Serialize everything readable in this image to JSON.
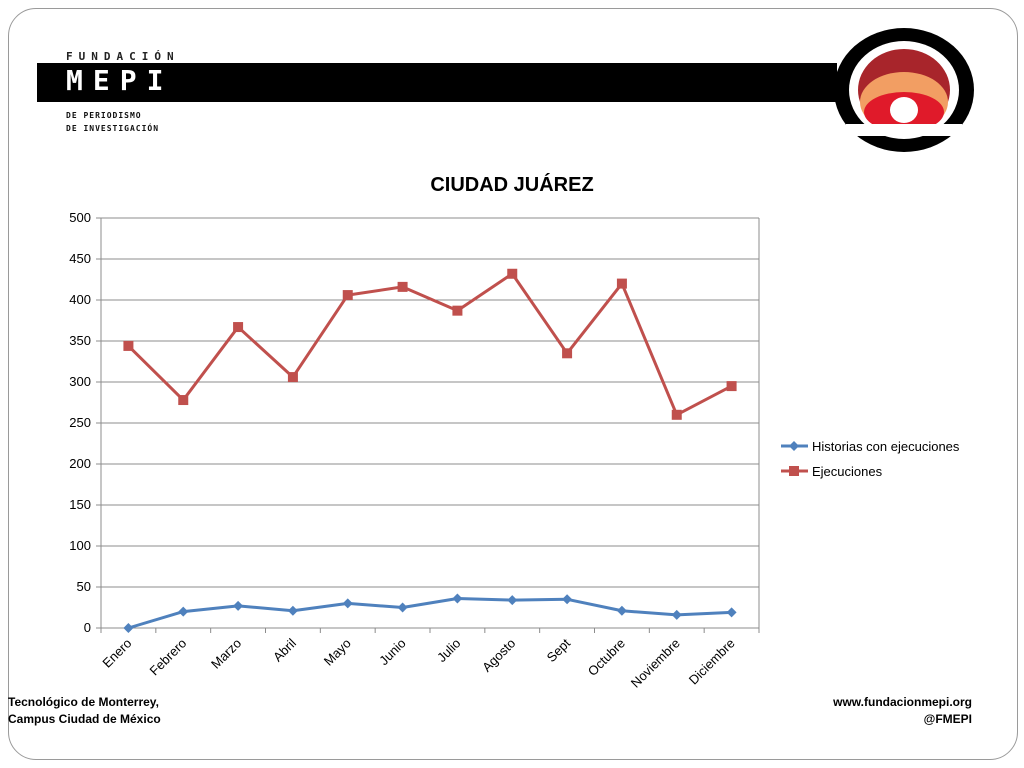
{
  "header": {
    "brand_top": "FUNDACIÓN",
    "brand_name": "MEPI",
    "brand_sub_line1": "DE PERIODISMO",
    "brand_sub_line2": "DE INVESTIGACIÓN"
  },
  "footer": {
    "left_line1": "Tecnológico de Monterrey,",
    "left_line2": "Campus Ciudad de México",
    "right_line1": "www.fundacionmepi.org",
    "right_line2": "@FMEPI"
  },
  "colors": {
    "series_historias": "#4F81BD",
    "series_ejecuciones": "#C0504D",
    "emblem_outer": "#000000",
    "emblem_ring1": "#A8252B",
    "emblem_ring2": "#F29E63",
    "emblem_ring3": "#E01A2A"
  },
  "chart_data": {
    "type": "line",
    "title": "CIUDAD JUÁREZ",
    "xlabel": "",
    "ylabel": "",
    "ylim": [
      0,
      500
    ],
    "yticks": [
      0,
      50,
      100,
      150,
      200,
      250,
      300,
      350,
      400,
      450,
      500
    ],
    "grid": true,
    "legend_position": "right",
    "categories": [
      "Enero",
      "Febrero",
      "Marzo",
      "Abril",
      "Mayo",
      "Junio",
      "Julio",
      "Agosto",
      "Sept",
      "Octubre",
      "Noviembre",
      "Diciembre"
    ],
    "series": [
      {
        "name": "Historias con ejecuciones",
        "marker": "diamond",
        "values": [
          0,
          20,
          27,
          21,
          30,
          25,
          36,
          34,
          35,
          21,
          16,
          19
        ]
      },
      {
        "name": "Ejecuciones",
        "marker": "square",
        "values": [
          344,
          278,
          367,
          306,
          406,
          416,
          387,
          432,
          335,
          420,
          260,
          295
        ]
      }
    ]
  }
}
